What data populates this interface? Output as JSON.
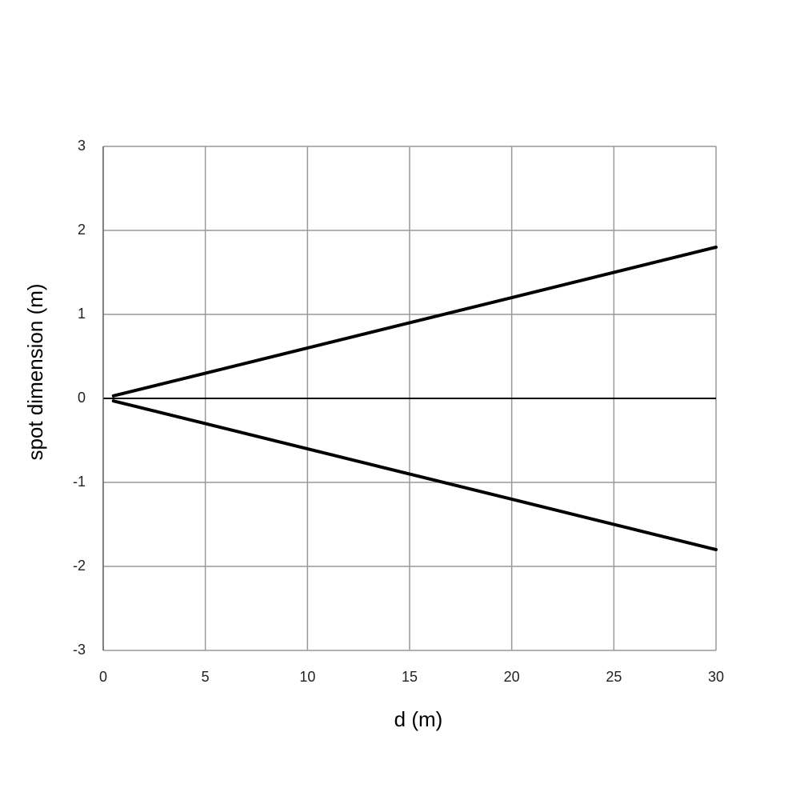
{
  "chart_data": {
    "type": "line",
    "x_label": "d (m)",
    "y_label": "spot dimension (m)",
    "x": [
      0.5,
      30
    ],
    "series": [
      {
        "color": "#000000",
        "values": [
          0.03,
          1.8
        ]
      },
      {
        "color": "#000000",
        "values": [
          -0.03,
          -1.8
        ]
      }
    ],
    "xlim": [
      0,
      30
    ],
    "xticks": [
      0,
      5,
      10,
      15,
      20,
      25,
      30
    ],
    "ylim": [
      -3,
      3
    ],
    "yticks": [
      -3,
      -2,
      -1,
      0,
      1,
      2,
      3
    ],
    "grid": true
  }
}
